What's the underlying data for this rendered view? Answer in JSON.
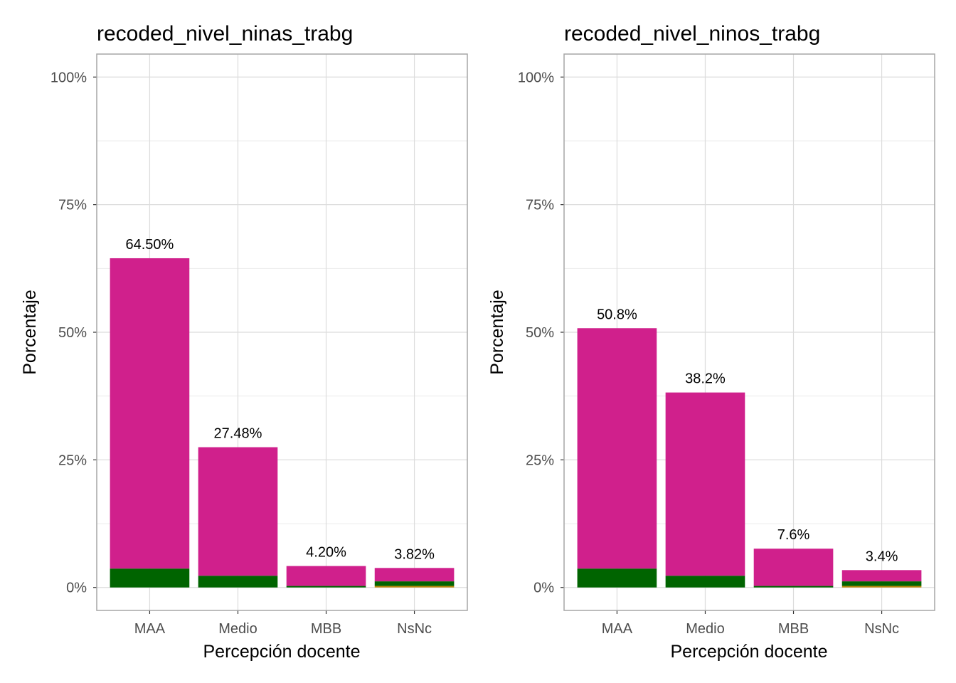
{
  "chart_data": [
    {
      "type": "bar",
      "stacked": true,
      "title": "recoded_nivel_ninas_trabg",
      "xlabel": "Percepción docente",
      "ylabel": "Porcentaje",
      "categories": [
        "MAA",
        "Medio",
        "MBB",
        "NsNc"
      ],
      "ylim": [
        -4.5,
        104.5
      ],
      "yticks": [
        "0%",
        "25%",
        "50%",
        "75%",
        "100%"
      ],
      "ytick_values": [
        0,
        25,
        50,
        75,
        100
      ],
      "grid": true,
      "bar_labels": [
        "64.50%",
        "27.48%",
        "4.20%",
        "3.82%"
      ],
      "series": [
        {
          "color": "#B8860B",
          "values": [
            0.0,
            0.0,
            0.0,
            0.3
          ]
        },
        {
          "color": "#006400",
          "values": [
            3.7,
            2.3,
            0.3,
            0.9
          ]
        },
        {
          "color": "#D0208C",
          "values": [
            60.8,
            25.18,
            3.9,
            2.62
          ]
        }
      ]
    },
    {
      "type": "bar",
      "stacked": true,
      "title": "recoded_nivel_ninos_trabg",
      "xlabel": "Percepción docente",
      "ylabel": "Porcentaje",
      "categories": [
        "MAA",
        "Medio",
        "MBB",
        "NsNc"
      ],
      "ylim": [
        -4.5,
        104.5
      ],
      "yticks": [
        "0%",
        "25%",
        "50%",
        "75%",
        "100%"
      ],
      "ytick_values": [
        0,
        25,
        50,
        75,
        100
      ],
      "grid": true,
      "bar_labels": [
        "50.8%",
        "38.2%",
        "7.6%",
        "3.4%"
      ],
      "series": [
        {
          "color": "#B8860B",
          "values": [
            0.0,
            0.0,
            0.0,
            0.3
          ]
        },
        {
          "color": "#006400",
          "values": [
            3.7,
            2.3,
            0.3,
            0.9
          ]
        },
        {
          "color": "#D0208C",
          "values": [
            47.1,
            35.9,
            7.3,
            2.2
          ]
        }
      ]
    }
  ]
}
